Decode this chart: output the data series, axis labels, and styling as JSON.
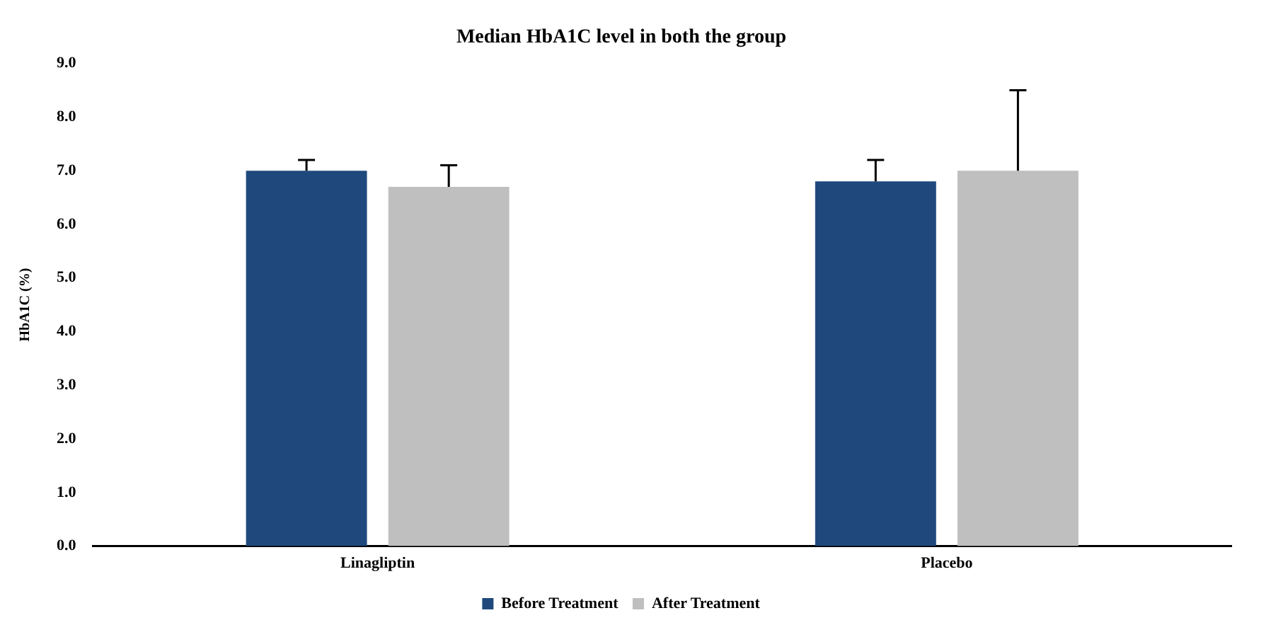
{
  "chart_data": {
    "type": "bar",
    "title": "Median HbA1C level in both the group",
    "ylabel": "HbA1C (%)",
    "categories": [
      "Linagliptin",
      "Placebo"
    ],
    "series": [
      {
        "name": "Before Treatment",
        "color": "#1f497d",
        "values": [
          7.0,
          6.8
        ],
        "errors": [
          [
            7.0,
            7.2
          ],
          [
            6.8,
            7.2
          ]
        ]
      },
      {
        "name": "After Treatment",
        "color": "#bfbfbf",
        "values": [
          6.7,
          7.0
        ],
        "errors": [
          [
            6.7,
            7.1
          ],
          [
            7.0,
            8.5
          ]
        ]
      }
    ],
    "ylim": [
      0,
      9
    ],
    "yticks": [
      {
        "value": 0,
        "label": "0.0"
      },
      {
        "value": 1,
        "label": "1.0"
      },
      {
        "value": 2,
        "label": "2.0"
      },
      {
        "value": 3,
        "label": "3.0"
      },
      {
        "value": 4,
        "label": "4.0"
      },
      {
        "value": 5,
        "label": "5.0"
      },
      {
        "value": 6,
        "label": "6.0"
      },
      {
        "value": 7,
        "label": "7.0"
      },
      {
        "value": 8,
        "label": "8.0"
      },
      {
        "value": 9,
        "label": "9.0"
      }
    ],
    "grid": false,
    "legend": "bottom"
  }
}
